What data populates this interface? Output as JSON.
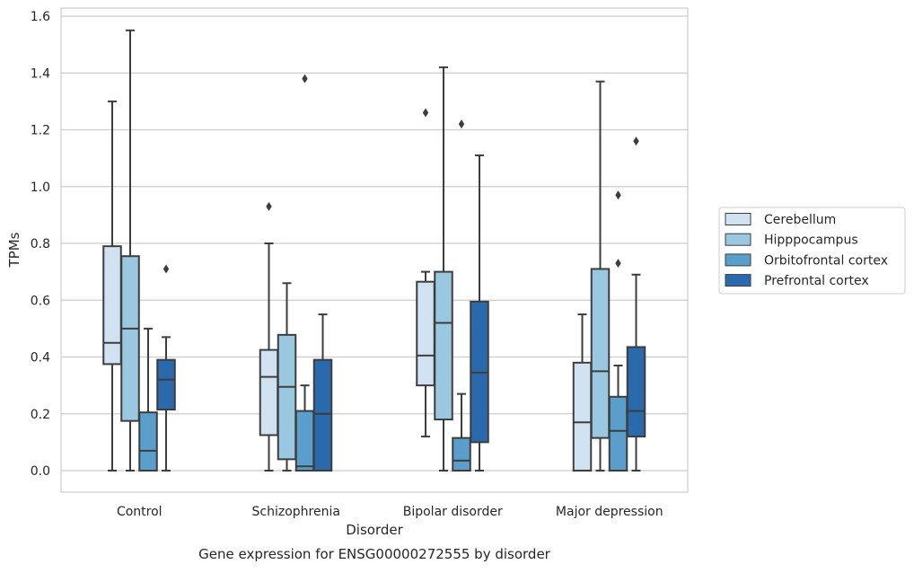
{
  "caption": "Gene expression for ENSG00000272555 by disorder",
  "chart_data": {
    "type": "box",
    "xlabel": "Disorder",
    "ylabel": "TPMs",
    "ylim": [
      -0.075,
      1.63
    ],
    "yticks": [
      0.0,
      0.2,
      0.4,
      0.6,
      0.8,
      1.0,
      1.2,
      1.4,
      1.6
    ],
    "ytick_labels": [
      "0.0",
      "0.2",
      "0.4",
      "0.6",
      "0.8",
      "1.0",
      "1.2",
      "1.4",
      "1.6"
    ],
    "grid": "horizontal",
    "legend_position": "right",
    "categories": [
      "Control",
      "Schizophrenia",
      "Bipolar disorder",
      "Major depression"
    ],
    "series": [
      {
        "name": "Cerebellum",
        "color": "#d0e1f2",
        "boxes": [
          {
            "whisker_low": 0.0,
            "q1": 0.375,
            "median": 0.45,
            "q3": 0.79,
            "whisker_high": 1.3,
            "outliers": []
          },
          {
            "whisker_low": 0.0,
            "q1": 0.125,
            "median": 0.33,
            "q3": 0.425,
            "whisker_high": 0.8,
            "outliers": [
              0.93
            ]
          },
          {
            "whisker_low": 0.12,
            "q1": 0.3,
            "median": 0.405,
            "q3": 0.665,
            "whisker_high": 0.7,
            "outliers": [
              1.26
            ]
          },
          {
            "whisker_low": 0.0,
            "q1": 0.0,
            "median": 0.17,
            "q3": 0.38,
            "whisker_high": 0.55,
            "outliers": []
          }
        ]
      },
      {
        "name": "Hipppocampus",
        "color": "#9ac8e0",
        "boxes": [
          {
            "whisker_low": 0.0,
            "q1": 0.175,
            "median": 0.5,
            "q3": 0.755,
            "whisker_high": 1.55,
            "outliers": []
          },
          {
            "whisker_low": 0.0,
            "q1": 0.04,
            "median": 0.295,
            "q3": 0.478,
            "whisker_high": 0.66,
            "outliers": []
          },
          {
            "whisker_low": 0.0,
            "q1": 0.18,
            "median": 0.52,
            "q3": 0.7,
            "whisker_high": 1.42,
            "outliers": []
          },
          {
            "whisker_low": 0.0,
            "q1": 0.115,
            "median": 0.35,
            "q3": 0.71,
            "whisker_high": 1.37,
            "outliers": []
          }
        ]
      },
      {
        "name": "Orbitofrontal cortex",
        "color": "#5a9fcb",
        "boxes": [
          {
            "whisker_low": 0.0,
            "q1": 0.0,
            "median": 0.07,
            "q3": 0.205,
            "whisker_high": 0.5,
            "outliers": []
          },
          {
            "whisker_low": 0.0,
            "q1": 0.0,
            "median": 0.015,
            "q3": 0.21,
            "whisker_high": 0.3,
            "outliers": [
              1.38
            ]
          },
          {
            "whisker_low": 0.0,
            "q1": 0.0,
            "median": 0.035,
            "q3": 0.115,
            "whisker_high": 0.27,
            "outliers": [
              1.22
            ]
          },
          {
            "whisker_low": 0.0,
            "q1": 0.0,
            "median": 0.14,
            "q3": 0.26,
            "whisker_high": 0.37,
            "outliers": [
              0.73,
              0.97
            ]
          }
        ]
      },
      {
        "name": "Prefrontal cortex",
        "color": "#2a6aac",
        "boxes": [
          {
            "whisker_low": 0.0,
            "q1": 0.215,
            "median": 0.32,
            "q3": 0.39,
            "whisker_high": 0.47,
            "outliers": [
              0.71
            ]
          },
          {
            "whisker_low": 0.0,
            "q1": 0.0,
            "median": 0.2,
            "q3": 0.39,
            "whisker_high": 0.55,
            "outliers": []
          },
          {
            "whisker_low": 0.0,
            "q1": 0.1,
            "median": 0.345,
            "q3": 0.595,
            "whisker_high": 1.11,
            "outliers": []
          },
          {
            "whisker_low": 0.0,
            "q1": 0.12,
            "median": 0.21,
            "q3": 0.435,
            "whisker_high": 0.69,
            "outliers": [
              1.16
            ]
          }
        ]
      }
    ]
  }
}
